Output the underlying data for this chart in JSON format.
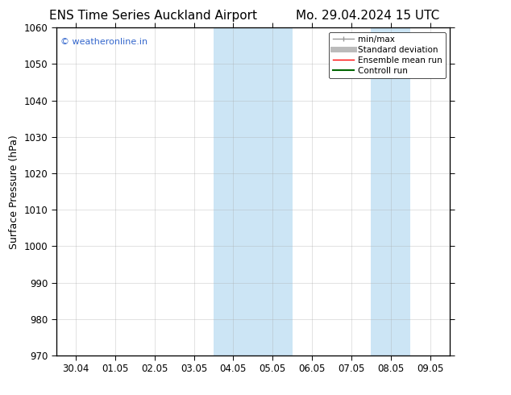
{
  "title_left": "ENS Time Series Auckland Airport",
  "title_right": "Mo. 29.04.2024 15 UTC",
  "ylabel": "Surface Pressure (hPa)",
  "ylim": [
    970,
    1060
  ],
  "yticks": [
    970,
    980,
    990,
    1000,
    1010,
    1020,
    1030,
    1040,
    1050,
    1060
  ],
  "xtick_labels": [
    "30.04",
    "01.05",
    "02.05",
    "03.05",
    "04.05",
    "05.05",
    "06.05",
    "07.05",
    "08.05",
    "09.05"
  ],
  "background_color": "#ffffff",
  "plot_bg_color": "#ffffff",
  "shaded_regions": [
    {
      "xstart": 4,
      "xend": 6,
      "color": "#cce5f5"
    },
    {
      "xstart": 8,
      "xend": 9,
      "color": "#cce5f5"
    }
  ],
  "watermark_text": "© weatheronline.in",
  "watermark_color": "#3366cc",
  "legend_entries": [
    {
      "label": "min/max",
      "color": "#999999",
      "lw": 1.0
    },
    {
      "label": "Standard deviation",
      "color": "#bbbbbb",
      "lw": 5
    },
    {
      "label": "Ensemble mean run",
      "color": "#ff0000",
      "lw": 1.0
    },
    {
      "label": "Controll run",
      "color": "#006600",
      "lw": 1.5
    }
  ],
  "title_fontsize": 11,
  "axis_label_fontsize": 9,
  "tick_fontsize": 8.5,
  "watermark_fontsize": 8,
  "legend_fontsize": 7.5
}
